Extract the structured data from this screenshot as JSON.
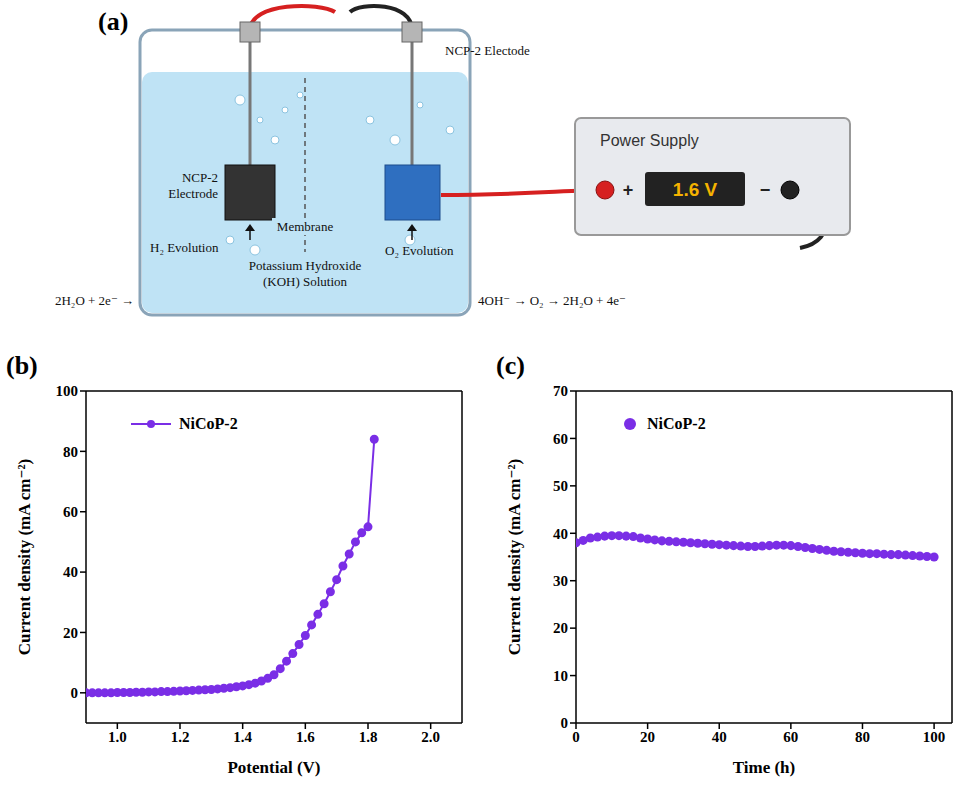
{
  "diagram": {
    "panel": "(a)",
    "left_electrode": "NCP-2 Electrode",
    "right_electrode": "NCP-2 Electode",
    "membrane": "Membrane",
    "h2": "H₂ Evolution",
    "o2": "O₂ Evolution",
    "electrolyte": "Potassium Hydroxide (KOH) Solution",
    "cathode_reaction": "2H₂O + 2e⁻ →",
    "anode_reaction": "4OH⁻ → O₂ → 2H₂O + 4e⁻",
    "power_supply": {
      "title": "Power Supply",
      "display": "1.6 V",
      "plus": "+",
      "minus": "−"
    }
  },
  "chart_data": [
    {
      "panel": "(b)",
      "type": "line",
      "x_label": "Potential (V)",
      "y_label": "Current density (mA cm⁻²)",
      "xlim": [
        0.9,
        2.1
      ],
      "xticks": [
        {
          "value": 1,
          "label": "1.0"
        },
        1.2,
        1.4,
        1.6,
        1.8,
        {
          "value": 2,
          "label": "2.0"
        }
      ],
      "ylim": [
        -10,
        100
      ],
      "yticks": [
        0,
        20,
        40,
        60,
        80,
        100
      ],
      "legend": "upper left",
      "x": [
        0.9,
        0.92,
        0.94,
        0.96,
        0.98,
        1.0,
        1.02,
        1.04,
        1.06,
        1.08,
        1.1,
        1.12,
        1.14,
        1.16,
        1.18,
        1.2,
        1.22,
        1.24,
        1.26,
        1.28,
        1.3,
        1.32,
        1.34,
        1.36,
        1.38,
        1.4,
        1.42,
        1.44,
        1.46,
        1.48,
        1.5,
        1.52,
        1.54,
        1.56,
        1.58,
        1.6,
        1.62,
        1.64,
        1.66,
        1.68,
        1.7,
        1.72,
        1.74,
        1.76,
        1.78,
        1.8,
        1.82
      ],
      "series": [
        {
          "name": "NiCoP-2",
          "color": "#7a2ee6",
          "marker": "circle",
          "values": [
            0,
            0,
            0,
            0,
            0,
            0.1,
            0.1,
            0.1,
            0.2,
            0.2,
            0.3,
            0.3,
            0.4,
            0.4,
            0.5,
            0.6,
            0.7,
            0.8,
            0.9,
            1.0,
            1.1,
            1.3,
            1.5,
            1.7,
            2.0,
            2.3,
            2.7,
            3.2,
            3.9,
            4.8,
            6,
            8,
            10.5,
            13,
            16,
            19,
            22.5,
            26,
            29.5,
            33.5,
            37.5,
            42,
            46,
            50,
            53,
            55,
            84
          ]
        }
      ]
    },
    {
      "panel": "(c)",
      "type": "scatter",
      "x_label": "Time (h)",
      "y_label": "Current density (mA cm⁻²)",
      "xlim": [
        0,
        105
      ],
      "xticks": [
        0,
        20,
        40,
        60,
        80,
        100
      ],
      "ylim": [
        0,
        70
      ],
      "yticks": [
        0,
        10,
        20,
        30,
        40,
        50,
        60,
        70
      ],
      "legend": "upper left",
      "x": [
        0,
        2,
        4,
        6,
        8,
        10,
        12,
        14,
        16,
        18,
        20,
        22,
        24,
        26,
        28,
        30,
        32,
        34,
        36,
        38,
        40,
        42,
        44,
        46,
        48,
        50,
        52,
        54,
        56,
        58,
        60,
        62,
        64,
        66,
        68,
        70,
        72,
        74,
        76,
        78,
        80,
        82,
        84,
        86,
        88,
        90,
        92,
        94,
        96,
        98,
        100
      ],
      "series": [
        {
          "name": "NiCoP-2",
          "color": "#7a2ee6",
          "marker": "circle",
          "values": [
            38,
            38.5,
            39,
            39.2,
            39.4,
            39.5,
            39.5,
            39.4,
            39.3,
            39,
            38.8,
            38.6,
            38.4,
            38.3,
            38.2,
            38.1,
            38,
            37.9,
            37.8,
            37.7,
            37.6,
            37.5,
            37.4,
            37.3,
            37.2,
            37.2,
            37.3,
            37.4,
            37.5,
            37.5,
            37.4,
            37.2,
            37,
            36.8,
            36.6,
            36.4,
            36.2,
            36.1,
            36,
            35.9,
            35.8,
            35.7,
            35.7,
            35.6,
            35.5,
            35.5,
            35.4,
            35.3,
            35.2,
            35.1,
            35
          ]
        }
      ]
    }
  ]
}
